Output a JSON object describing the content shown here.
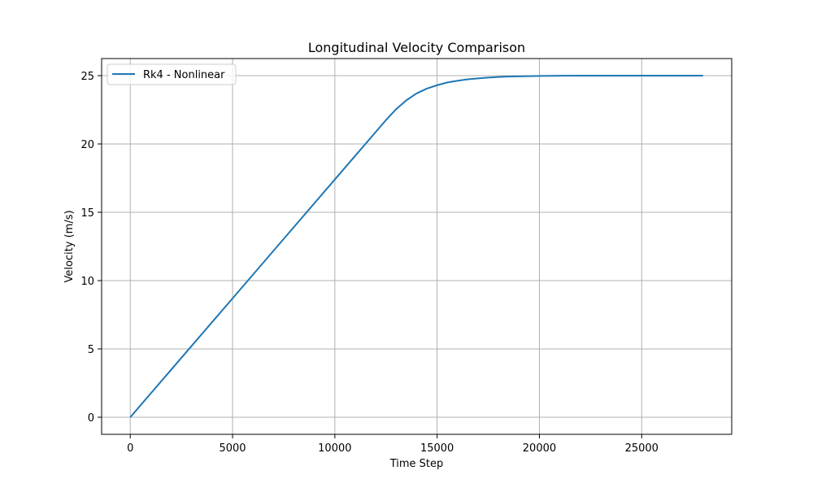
{
  "chart_data": {
    "type": "line",
    "title": "Longitudinal Velocity Comparison",
    "xlabel": "Time Step",
    "ylabel": "Velocity (m/s)",
    "xlim": [
      -1400,
      29400
    ],
    "ylim": [
      -1.25,
      26.25
    ],
    "xticks": [
      0,
      5000,
      10000,
      15000,
      20000,
      25000
    ],
    "xtick_labels": [
      "0",
      "5000",
      "10000",
      "15000",
      "20000",
      "25000"
    ],
    "yticks": [
      0,
      5,
      10,
      15,
      20,
      25
    ],
    "ytick_labels": [
      "0",
      "5",
      "10",
      "15",
      "20",
      "25"
    ],
    "grid": true,
    "legend_position": "upper-left",
    "series": [
      {
        "name": "Rk4 - Nonlinear",
        "color": "#1f77b4",
        "x": [
          0,
          1000,
          2000,
          3000,
          4000,
          5000,
          6000,
          7000,
          8000,
          9000,
          10000,
          11000,
          12000,
          12500,
          13000,
          13500,
          14000,
          14500,
          15000,
          15500,
          16000,
          16500,
          17000,
          17500,
          18000,
          18500,
          19000,
          20000,
          21000,
          22000,
          23000,
          24000,
          25000,
          26000,
          27000,
          28000
        ],
        "y": [
          0,
          1.74,
          3.48,
          5.22,
          6.96,
          8.7,
          10.44,
          12.18,
          13.92,
          15.66,
          17.4,
          19.14,
          20.88,
          21.75,
          22.55,
          23.2,
          23.7,
          24.05,
          24.3,
          24.5,
          24.63,
          24.73,
          24.8,
          24.86,
          24.9,
          24.93,
          24.95,
          24.98,
          24.99,
          25.0,
          25.0,
          25.0,
          25.0,
          25.0,
          25.0,
          25.0
        ]
      }
    ]
  }
}
